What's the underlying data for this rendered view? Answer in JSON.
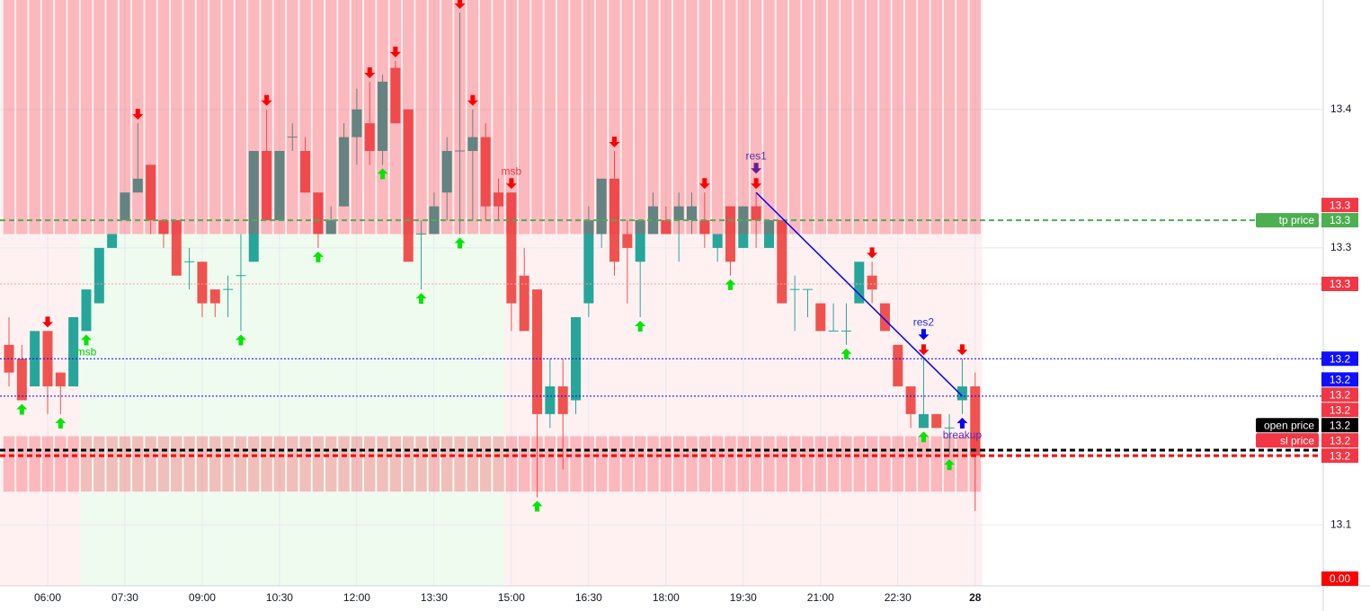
{
  "chart_data": {
    "type": "candlestick",
    "categories": [
      null,
      null,
      null,
      "06:00",
      null,
      null,
      null,
      null,
      null,
      "07:30",
      null,
      null,
      null,
      null,
      null,
      "09:00",
      null,
      null,
      null,
      null,
      null,
      "10:30",
      null,
      null,
      null,
      null,
      null,
      "12:00",
      null,
      null,
      null,
      null,
      null,
      "13:30",
      null,
      null,
      null,
      null,
      null,
      "15:00",
      null,
      null,
      null,
      null,
      null,
      "16:30",
      null,
      null,
      null,
      null,
      null,
      "18:00",
      null,
      null,
      null,
      null,
      null,
      "19:30",
      null,
      null,
      null,
      null,
      null,
      "21:00",
      null,
      null,
      null,
      null,
      null,
      "22:30",
      null,
      null,
      null,
      null,
      null,
      "28"
    ],
    "open": [
      13.23,
      13.22,
      13.2,
      13.24,
      13.21,
      13.2,
      13.24,
      13.26,
      13.3,
      13.32,
      13.34,
      13.36,
      13.32,
      13.32,
      13.29,
      13.29,
      13.27,
      13.27,
      13.28,
      13.29,
      13.37,
      13.32,
      13.38,
      13.37,
      13.34,
      13.31,
      13.33,
      13.38,
      13.39,
      13.37,
      13.43,
      13.4,
      13.31,
      13.31,
      13.34,
      13.37,
      13.37,
      13.38,
      13.34,
      13.34,
      13.28,
      13.27,
      13.18,
      13.2,
      13.19,
      13.26,
      13.31,
      13.35,
      13.31,
      13.29,
      13.31,
      13.32,
      13.32,
      13.32,
      13.32,
      13.3,
      13.33,
      13.3,
      13.33,
      13.3,
      13.32,
      13.27,
      13.27,
      13.26,
      13.24,
      13.24,
      13.26,
      13.28,
      13.26,
      13.23,
      13.2,
      13.17,
      13.18,
      13.17,
      13.19,
      13.2
    ],
    "high": [
      13.25,
      13.23,
      13.24,
      13.24,
      13.21,
      13.25,
      13.27,
      13.3,
      13.31,
      13.34,
      13.39,
      13.36,
      13.32,
      13.32,
      13.3,
      13.29,
      13.27,
      13.28,
      13.31,
      13.37,
      13.4,
      13.37,
      13.39,
      13.38,
      13.34,
      13.33,
      13.39,
      13.415,
      13.42,
      13.425,
      13.435,
      13.4,
      13.32,
      13.34,
      13.38,
      13.47,
      13.4,
      13.39,
      13.35,
      13.34,
      13.3,
      13.27,
      13.22,
      13.22,
      13.25,
      13.33,
      13.35,
      13.37,
      13.32,
      13.32,
      13.34,
      13.33,
      13.34,
      13.34,
      13.34,
      13.31,
      13.33,
      13.33,
      13.34,
      13.32,
      13.32,
      13.28,
      13.27,
      13.26,
      13.26,
      13.26,
      13.29,
      13.29,
      13.26,
      13.23,
      13.2,
      13.22,
      13.18,
      13.18,
      13.22,
      13.21
    ],
    "low": [
      13.2,
      13.19,
      13.2,
      13.18,
      13.18,
      13.2,
      13.24,
      13.26,
      13.3,
      13.32,
      13.34,
      13.31,
      13.3,
      13.28,
      13.27,
      13.25,
      13.25,
      13.25,
      13.24,
      13.29,
      13.32,
      13.32,
      13.37,
      13.34,
      13.3,
      13.31,
      13.33,
      13.36,
      13.36,
      13.36,
      13.39,
      13.29,
      13.27,
      13.31,
      13.32,
      13.31,
      13.32,
      13.32,
      13.32,
      13.24,
      13.24,
      13.12,
      13.17,
      13.14,
      13.18,
      13.25,
      13.3,
      13.28,
      13.26,
      13.25,
      13.31,
      13.31,
      13.29,
      13.31,
      13.3,
      13.29,
      13.28,
      13.3,
      13.3,
      13.3,
      13.26,
      13.24,
      13.25,
      13.24,
      13.24,
      13.23,
      13.26,
      13.26,
      13.24,
      13.2,
      13.17,
      13.17,
      13.17,
      13.15,
      13.18,
      13.11
    ],
    "close": [
      13.21,
      13.19,
      13.24,
      13.2,
      13.2,
      13.25,
      13.27,
      13.3,
      13.31,
      13.34,
      13.35,
      13.32,
      13.31,
      13.28,
      13.29,
      13.26,
      13.26,
      13.27,
      13.28,
      13.37,
      13.32,
      13.37,
      13.38,
      13.34,
      13.31,
      13.32,
      13.38,
      13.4,
      13.37,
      13.42,
      13.39,
      13.29,
      13.31,
      13.33,
      13.37,
      13.37,
      13.38,
      13.33,
      13.33,
      13.26,
      13.24,
      13.18,
      13.2,
      13.18,
      13.25,
      13.32,
      13.35,
      13.29,
      13.3,
      13.32,
      13.33,
      13.31,
      13.33,
      13.33,
      13.31,
      13.31,
      13.29,
      13.33,
      13.32,
      13.32,
      13.26,
      13.27,
      13.27,
      13.24,
      13.24,
      13.24,
      13.29,
      13.27,
      13.24,
      13.2,
      13.18,
      13.18,
      13.17,
      13.17,
      13.2,
      13.15
    ],
    "up_color": "#26a69a",
    "down_color": "#ef5350",
    "ylim": [
      13.056,
      13.479
    ],
    "yticks": [
      13.1,
      13.3,
      13.4
    ],
    "grid": true,
    "background": {
      "color": "#fff1f1",
      "highlight": {
        "from": 6,
        "to": 38,
        "color": "#f0fbf0"
      }
    },
    "zones": [
      {
        "low": 13.31,
        "high": 13.479,
        "color": "#f23645"
      },
      {
        "low": 13.124,
        "high": 13.164,
        "color": "#f23645"
      }
    ],
    "lines": [
      {
        "value": 13.32,
        "color": "#4caf50",
        "style": "dashed",
        "width": 2
      },
      {
        "value": 13.274,
        "color": "#f6a0a0",
        "style": "dotted",
        "width": 1
      },
      {
        "value": 13.22,
        "color": "#0000ff",
        "style": "dotted",
        "width": 1
      },
      {
        "value": 13.193,
        "color": "#0000ff",
        "style": "dotted",
        "width": 1
      },
      {
        "value": 13.154,
        "color": "#000000",
        "style": "dashed",
        "width": 3
      },
      {
        "value": 13.15,
        "color": "#ff0000",
        "style": "dashed",
        "width": 3
      }
    ],
    "trendline": {
      "from": {
        "index": 58,
        "value": 13.34
      },
      "to": {
        "index": 74,
        "value": 13.193
      },
      "color": "#0000ff"
    },
    "down_arrows": [
      3,
      10,
      20,
      28,
      30,
      35,
      36,
      39,
      47,
      54,
      58,
      67,
      71,
      74
    ],
    "down_arrow_color": "#ff0000",
    "up_arrows": [
      1,
      4,
      6,
      18,
      24,
      29,
      32,
      35,
      41,
      49,
      56,
      65,
      71,
      73
    ],
    "up_arrow_color": "#00e600",
    "annotations": [
      {
        "text": "msb",
        "index": 39,
        "position": "above",
        "color": "#f23645"
      },
      {
        "text": "msb",
        "index": 6,
        "position": "below",
        "color": "#00d000"
      },
      {
        "text": "res1",
        "index": 58,
        "position": "above",
        "color": "#5a2bb8",
        "arrow_color": "#6a1b9a"
      },
      {
        "text": "res2",
        "index": 71,
        "position": "above",
        "color": "#2233dd",
        "arrow_color": "#0000ff"
      },
      {
        "text": "breakup",
        "index": 74,
        "position": "below",
        "color": "#5a2bb8",
        "arrow_color": "#0000ff"
      }
    ],
    "price_tags": [
      {
        "value": 13.331,
        "label": "13.3",
        "color": "#f23645"
      },
      {
        "value": 13.32,
        "label": "13.3",
        "color": "#4caf50",
        "title": "tp price"
      },
      {
        "value": 13.274,
        "label": "13.3",
        "color": "#f23645"
      },
      {
        "value": 13.22,
        "label": "13.2",
        "color": "#1010ff"
      },
      {
        "value": 13.205,
        "label": "13.2",
        "color": "#1010ff"
      },
      {
        "value": 13.194,
        "label": "13.2",
        "color": "#f23645"
      },
      {
        "value": 13.183,
        "label": "13.2",
        "color": "#f23645"
      },
      {
        "value": 13.172,
        "label": "13.2",
        "color": "#000000",
        "title": "open price"
      },
      {
        "value": 13.161,
        "label": "13.2",
        "color": "#f23645",
        "title": "sl price"
      },
      {
        "value": 13.15,
        "label": "13.2",
        "color": "#f23645"
      },
      {
        "value": 0,
        "label": "0.00",
        "color": "#ff0000"
      }
    ]
  }
}
